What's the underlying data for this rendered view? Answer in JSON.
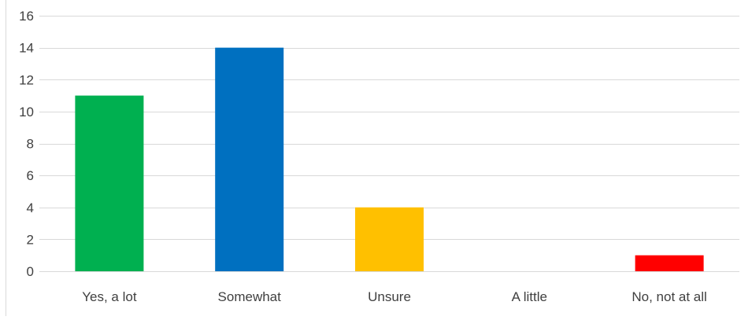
{
  "chart_data": {
    "type": "bar",
    "categories": [
      "Yes, a lot",
      "Somewhat",
      "Unsure",
      "A little",
      "No, not at all"
    ],
    "values": [
      11,
      14,
      4,
      0,
      1
    ],
    "colors": [
      "#00b050",
      "#0070c0",
      "#ffc000",
      "#a5a5a5",
      "#ff0000"
    ],
    "ylim": [
      0,
      16
    ],
    "yticks": [
      0,
      2,
      4,
      6,
      8,
      10,
      12,
      14,
      16
    ],
    "grid": true,
    "gridline_color": "#d9d9d9",
    "title": "",
    "xlabel": "",
    "ylabel": ""
  }
}
